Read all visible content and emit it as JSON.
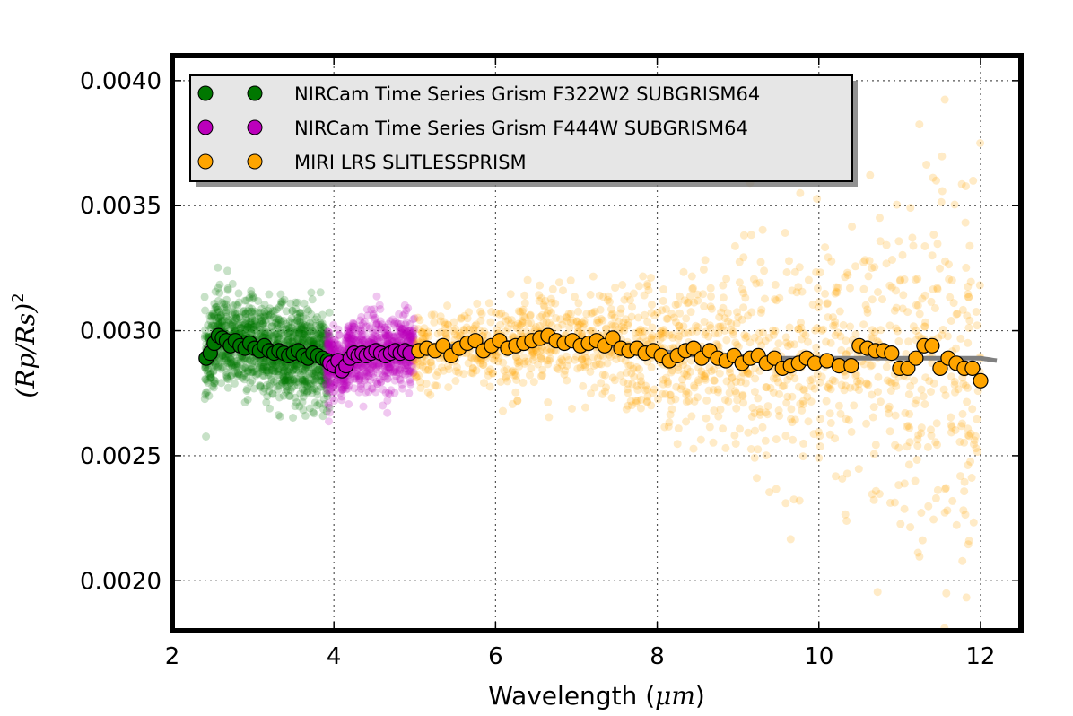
{
  "chart_data": {
    "type": "scatter",
    "xlabel": "Wavelength",
    "xlabel_unit": "μm",
    "ylabel": "(Rp/Rs)",
    "ylabel_exponent": "2",
    "xlim": [
      2,
      12.5
    ],
    "ylim": [
      0.0018,
      0.0041
    ],
    "x_ticks": [
      2,
      4,
      6,
      8,
      10,
      12
    ],
    "x_tick_labels": [
      "2",
      "4",
      "6",
      "8",
      "10",
      "12"
    ],
    "y_ticks": [
      0.002,
      0.0025,
      0.003,
      0.0035,
      0.004
    ],
    "y_tick_labels": [
      "0.0020",
      "0.0025",
      "0.0030",
      "0.0035",
      "0.0040"
    ],
    "grid": true,
    "legend_position": "top-left",
    "series": [
      {
        "name": "NIRCam Time Series Grism F322W2 SUBGRISM64",
        "color": "#007700",
        "x_range": [
          2.4,
          3.95
        ],
        "scatter_sigma": 9e-05,
        "binned_x": [
          2.42,
          2.47,
          2.52,
          2.57,
          2.62,
          2.67,
          2.72,
          2.78,
          2.84,
          2.9,
          2.96,
          3.02,
          3.08,
          3.14,
          3.2,
          3.26,
          3.32,
          3.38,
          3.44,
          3.5,
          3.56,
          3.62,
          3.68,
          3.74,
          3.8,
          3.86,
          3.92
        ],
        "binned_y": [
          0.00289,
          0.00291,
          0.00295,
          0.00298,
          0.00297,
          0.00296,
          0.00294,
          0.00296,
          0.00294,
          0.00293,
          0.00295,
          0.00293,
          0.00292,
          0.00294,
          0.00292,
          0.00291,
          0.00292,
          0.00291,
          0.0029,
          0.00291,
          0.00292,
          0.0029,
          0.00289,
          0.00291,
          0.0029,
          0.00289,
          0.00288
        ]
      },
      {
        "name": "NIRCam Time Series Grism F444W SUBGRISM64",
        "color": "#bb00bb",
        "x_range": [
          3.9,
          5.0
        ],
        "scatter_sigma": 7e-05,
        "binned_x": [
          3.95,
          4.0,
          4.05,
          4.1,
          4.15,
          4.2,
          4.25,
          4.3,
          4.35,
          4.4,
          4.46,
          4.52,
          4.58,
          4.64,
          4.7,
          4.76,
          4.82,
          4.88,
          4.94
        ],
        "binned_y": [
          0.00287,
          0.00286,
          0.00288,
          0.00284,
          0.00286,
          0.00289,
          0.00291,
          0.0029,
          0.00291,
          0.0029,
          0.00291,
          0.00292,
          0.00291,
          0.0029,
          0.00291,
          0.00292,
          0.00291,
          0.00292,
          0.00291
        ]
      },
      {
        "name": "MIRI LRS SLITLESSPRISM",
        "color": "#ffa500",
        "x_range": [
          5.0,
          12.0
        ],
        "scatter_sigma_start": 8e-05,
        "scatter_sigma_end": 0.00045,
        "binned_x": [
          5.05,
          5.15,
          5.25,
          5.35,
          5.45,
          5.55,
          5.65,
          5.75,
          5.85,
          5.95,
          6.05,
          6.15,
          6.25,
          6.35,
          6.45,
          6.55,
          6.65,
          6.75,
          6.85,
          6.95,
          7.05,
          7.15,
          7.25,
          7.35,
          7.45,
          7.55,
          7.65,
          7.75,
          7.85,
          7.95,
          8.05,
          8.15,
          8.25,
          8.35,
          8.45,
          8.55,
          8.65,
          8.75,
          8.85,
          8.95,
          9.05,
          9.15,
          9.25,
          9.35,
          9.45,
          9.55,
          9.65,
          9.75,
          9.85,
          9.95,
          10.1,
          10.25,
          10.4,
          10.5,
          10.6,
          10.7,
          10.8,
          10.9,
          11.0,
          11.1,
          11.2,
          11.3,
          11.4,
          11.5,
          11.6,
          11.7,
          11.8,
          11.9,
          12.0
        ],
        "binned_y": [
          0.00292,
          0.00293,
          0.00292,
          0.00294,
          0.0029,
          0.00293,
          0.00295,
          0.00296,
          0.00292,
          0.00294,
          0.00296,
          0.00293,
          0.00294,
          0.00295,
          0.00296,
          0.00297,
          0.00298,
          0.00296,
          0.00295,
          0.00296,
          0.00294,
          0.00295,
          0.00296,
          0.00294,
          0.00297,
          0.00293,
          0.00292,
          0.00293,
          0.00291,
          0.00292,
          0.0029,
          0.00288,
          0.0029,
          0.00292,
          0.00293,
          0.00289,
          0.00292,
          0.00289,
          0.00288,
          0.0029,
          0.00287,
          0.00289,
          0.0029,
          0.00287,
          0.00289,
          0.00285,
          0.00286,
          0.00287,
          0.00289,
          0.00287,
          0.00288,
          0.00286,
          0.00286,
          0.00294,
          0.00293,
          0.00292,
          0.00292,
          0.00291,
          0.00285,
          0.00285,
          0.00289,
          0.00294,
          0.00294,
          0.00285,
          0.00289,
          0.00287,
          0.00285,
          0.00285,
          0.0028
        ]
      }
    ],
    "model": {
      "color": "#808080",
      "x": [
        2.4,
        2.5,
        2.6,
        2.8,
        3.0,
        3.3,
        3.6,
        3.9,
        4.1,
        4.3,
        4.6,
        5.0,
        5.5,
        6.0,
        6.5,
        7.0,
        7.5,
        8.0,
        8.5,
        9.0,
        9.5,
        10.0,
        10.5,
        11.0,
        11.5,
        12.0,
        12.2
      ],
      "y": [
        0.00292,
        0.00296,
        0.00297,
        0.00295,
        0.00294,
        0.00292,
        0.00291,
        0.00289,
        0.0029,
        0.0029,
        0.00291,
        0.00293,
        0.00294,
        0.00295,
        0.00296,
        0.00295,
        0.00294,
        0.00292,
        0.0029,
        0.0029,
        0.00289,
        0.00289,
        0.00289,
        0.00289,
        0.00289,
        0.00289,
        0.00288
      ]
    }
  }
}
